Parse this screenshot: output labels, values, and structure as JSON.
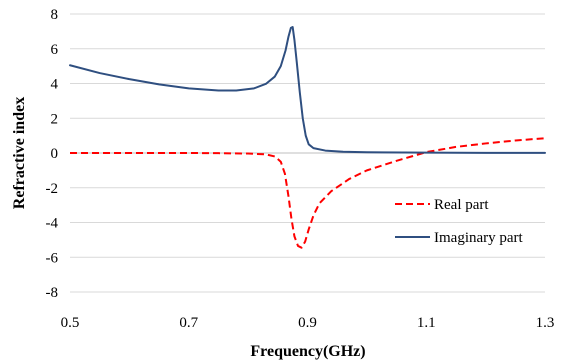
{
  "chart_data": {
    "type": "line",
    "xlabel": "Frequency(GHz)",
    "ylabel": "Refractive index",
    "xlim": [
      0.5,
      1.3
    ],
    "ylim": [
      -8,
      8
    ],
    "x_ticks": [
      "0.5",
      "0.7",
      "0.9",
      "1.1",
      "1.3"
    ],
    "y_ticks": [
      "8",
      "6",
      "4",
      "2",
      "0",
      "-2",
      "-4",
      "-6",
      "-8"
    ],
    "grid": "horizontal",
    "legend": "right",
    "series": [
      {
        "name": "Real part",
        "color": "#ff0000",
        "dash": "dashed",
        "points": [
          [
            0.5,
            0.0
          ],
          [
            0.6,
            0.0
          ],
          [
            0.7,
            0.0
          ],
          [
            0.75,
            -0.01
          ],
          [
            0.8,
            -0.03
          ],
          [
            0.83,
            -0.08
          ],
          [
            0.845,
            -0.2
          ],
          [
            0.855,
            -0.5
          ],
          [
            0.862,
            -1.2
          ],
          [
            0.868,
            -2.5
          ],
          [
            0.873,
            -3.8
          ],
          [
            0.878,
            -4.8
          ],
          [
            0.884,
            -5.35
          ],
          [
            0.89,
            -5.45
          ],
          [
            0.896,
            -5.1
          ],
          [
            0.902,
            -4.4
          ],
          [
            0.91,
            -3.6
          ],
          [
            0.92,
            -2.9
          ],
          [
            0.94,
            -2.2
          ],
          [
            0.97,
            -1.5
          ],
          [
            1.0,
            -1.0
          ],
          [
            1.05,
            -0.45
          ],
          [
            1.1,
            0.05
          ],
          [
            1.15,
            0.35
          ],
          [
            1.2,
            0.55
          ],
          [
            1.25,
            0.72
          ],
          [
            1.3,
            0.85
          ]
        ]
      },
      {
        "name": "Imaginary part",
        "color": "#2f4f80",
        "dash": "solid",
        "points": [
          [
            0.5,
            5.05
          ],
          [
            0.55,
            4.6
          ],
          [
            0.6,
            4.25
          ],
          [
            0.65,
            3.95
          ],
          [
            0.7,
            3.72
          ],
          [
            0.75,
            3.6
          ],
          [
            0.78,
            3.6
          ],
          [
            0.81,
            3.72
          ],
          [
            0.83,
            3.98
          ],
          [
            0.845,
            4.4
          ],
          [
            0.855,
            5.0
          ],
          [
            0.863,
            5.9
          ],
          [
            0.868,
            6.7
          ],
          [
            0.872,
            7.2
          ],
          [
            0.875,
            7.25
          ],
          [
            0.878,
            6.5
          ],
          [
            0.882,
            5.2
          ],
          [
            0.887,
            3.5
          ],
          [
            0.892,
            2.0
          ],
          [
            0.897,
            1.0
          ],
          [
            0.902,
            0.5
          ],
          [
            0.91,
            0.28
          ],
          [
            0.93,
            0.14
          ],
          [
            0.96,
            0.07
          ],
          [
            1.0,
            0.04
          ],
          [
            1.1,
            0.02
          ],
          [
            1.2,
            0.01
          ],
          [
            1.3,
            0.01
          ]
        ]
      }
    ]
  }
}
